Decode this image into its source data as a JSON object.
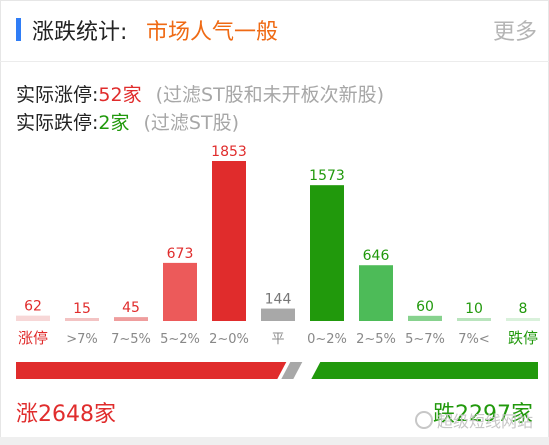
{
  "header": {
    "title": "涨跌统计:",
    "mood": "市场人气一般",
    "more": "更多"
  },
  "limit_up": {
    "label": "实际涨停:",
    "value": "52家",
    "note": "(过滤ST股和未开板次新股)"
  },
  "limit_down": {
    "label": "实际跌停:",
    "value": "2家",
    "note": "(过滤ST股)"
  },
  "colors": {
    "up": "#e02c2c",
    "down": "#21990c",
    "flat": "#a8a8a8",
    "accent": "#2f7df6",
    "mood": "#ef6a14"
  },
  "chart_data": {
    "type": "bar",
    "categories": [
      "涨停",
      ">7%",
      "7~5%",
      "5~2%",
      "2~0%",
      "平",
      "0~2%",
      "2~5%",
      "5~7%",
      "7%<",
      "跌停"
    ],
    "values": [
      62,
      15,
      45,
      673,
      1853,
      144,
      1573,
      646,
      60,
      10,
      8
    ],
    "value_labels": [
      "62",
      "15",
      "45",
      "673",
      "1853",
      "144",
      "1573",
      "646",
      "60",
      "10",
      "8"
    ],
    "bar_colors": [
      "#f7d7d7",
      "#f3c3c3",
      "#ef9d9d",
      "#ec5a5a",
      "#e02c2c",
      "#a8a8a8",
      "#21990c",
      "#4dbb58",
      "#87d28e",
      "#b9e4bd",
      "#d9f1db"
    ],
    "label_colors": [
      "#e02c2c",
      "#e02c2c",
      "#e02c2c",
      "#e02c2c",
      "#e02c2c",
      "#777777",
      "#21990c",
      "#21990c",
      "#21990c",
      "#21990c",
      "#21990c"
    ],
    "tick_colors": [
      "#e02c2c",
      "#888888",
      "#888888",
      "#888888",
      "#888888",
      "#888888",
      "#888888",
      "#888888",
      "#888888",
      "#888888",
      "#21990c"
    ],
    "ylim": [
      0,
      1853
    ]
  },
  "summary": {
    "up": "涨2648家",
    "down": "跌2297家",
    "up_count": 2648,
    "down_count": 2297
  },
  "watermark": {
    "text": "超级短线网站"
  }
}
